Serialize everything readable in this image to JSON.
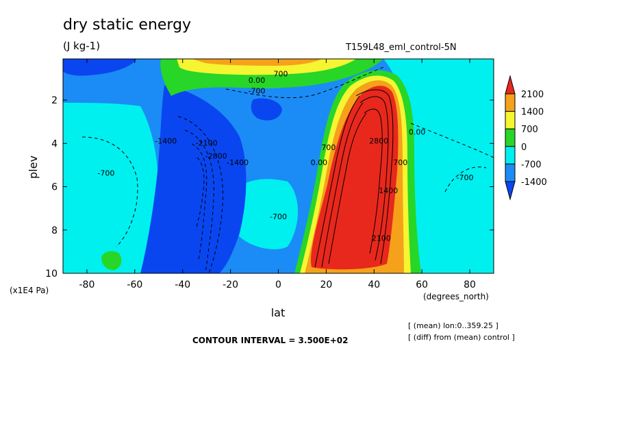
{
  "chart_data": {
    "type": "heatmap",
    "title": "dry static energy",
    "subtitle": "(J kg-1)",
    "run_label": "T159L48_eml_control-5N",
    "xlabel": "lat",
    "x_unit": "(degrees_north)",
    "ylabel": "plev",
    "y_unit": "(x1E4 Pa)",
    "xlim": [
      -90,
      90
    ],
    "ylim": [
      10,
      0.1
    ],
    "x_ticks": [
      -80,
      -60,
      -40,
      -20,
      0,
      20,
      40,
      60,
      80
    ],
    "y_ticks": [
      2,
      4,
      6,
      8,
      10
    ],
    "contour_interval_text": "CONTOUR INTERVAL = 3.500E+02",
    "notes": [
      "[ (mean) lon:0..359.25 ]",
      "[ (diff) from (mean) control ]"
    ],
    "colorbar": {
      "levels": [
        2100,
        1400,
        700,
        0,
        -700,
        -1400
      ],
      "colors": [
        "#e8281c",
        "#f5a21a",
        "#f5f532",
        "#27d627",
        "#00f0f0",
        "#1b8cf5",
        "#0a46f0"
      ]
    },
    "contour_labels": [
      {
        "text": "0.00",
        "lat": -9,
        "plev": 1.2
      },
      {
        "text": "700",
        "lat": 1,
        "plev": 0.9
      },
      {
        "text": "-700",
        "lat": -9,
        "plev": 1.7
      },
      {
        "text": "-1400",
        "lat": -47,
        "plev": 4
      },
      {
        "text": "-2100",
        "lat": -30,
        "plev": 4.1
      },
      {
        "text": "-2800",
        "lat": -26,
        "plev": 4.7
      },
      {
        "text": "-1400",
        "lat": -17,
        "plev": 5
      },
      {
        "text": "-700",
        "lat": -72,
        "plev": 5.5
      },
      {
        "text": "-700",
        "lat": 0,
        "plev": 7.5
      },
      {
        "text": "0.00",
        "lat": 17,
        "plev": 5
      },
      {
        "text": "700",
        "lat": 21,
        "plev": 4.3
      },
      {
        "text": "2800",
        "lat": 42,
        "plev": 4
      },
      {
        "text": "2100",
        "lat": 43,
        "plev": 8.5
      },
      {
        "text": "1400",
        "lat": 46,
        "plev": 6.3
      },
      {
        "text": "700",
        "lat": 51,
        "plev": 5
      },
      {
        "text": "0.00",
        "lat": 58,
        "plev": 3.6
      },
      {
        "text": "-700",
        "lat": 78,
        "plev": 5.7
      }
    ]
  }
}
